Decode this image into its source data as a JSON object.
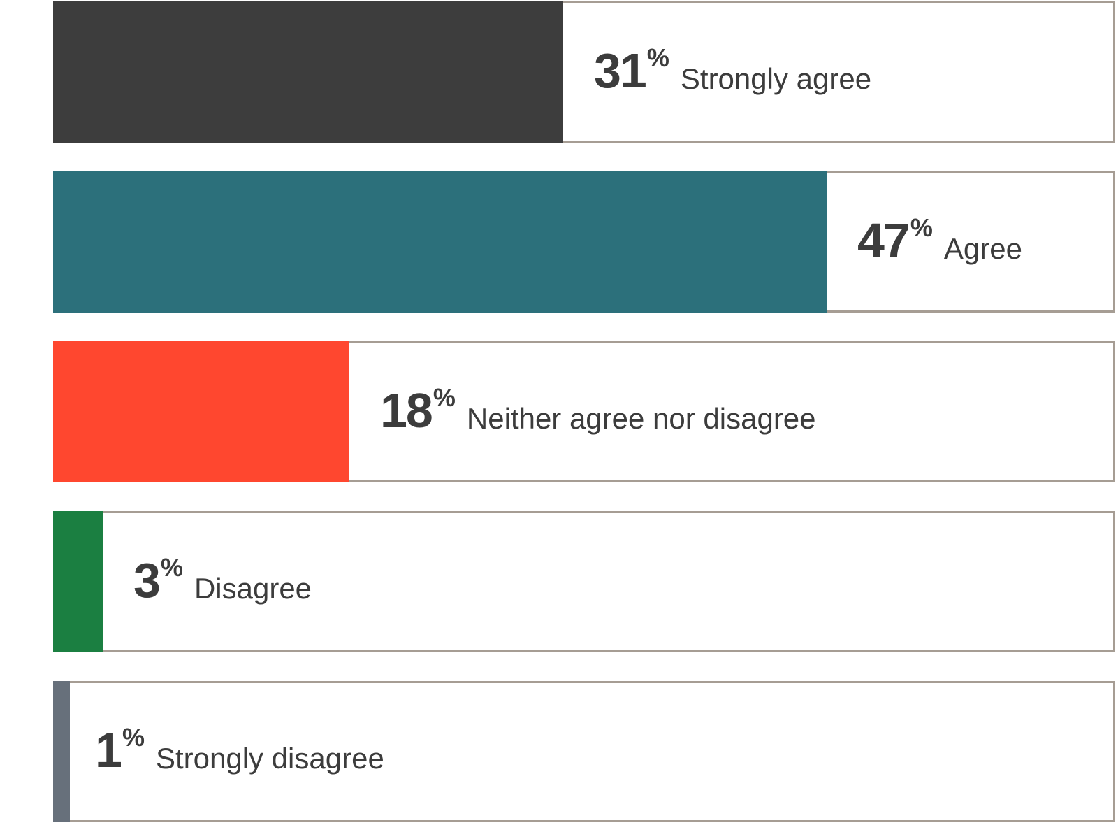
{
  "chart_data": {
    "type": "bar",
    "orientation": "horizontal",
    "unit": "%",
    "xlim": [
      0,
      100
    ],
    "grid": false,
    "legend": "none",
    "categories": [
      "Strongly agree",
      "Agree",
      "Neither agree nor disagree",
      "Disagree",
      "Strongly disagree"
    ],
    "values": [
      31,
      47,
      18,
      3,
      1
    ],
    "colors": [
      "#3d3d3d",
      "#2c707b",
      "#ff472f",
      "#1b7f41",
      "#67707b"
    ],
    "track_border_color": "#a69d94",
    "text_color": "#3c3c3c"
  }
}
